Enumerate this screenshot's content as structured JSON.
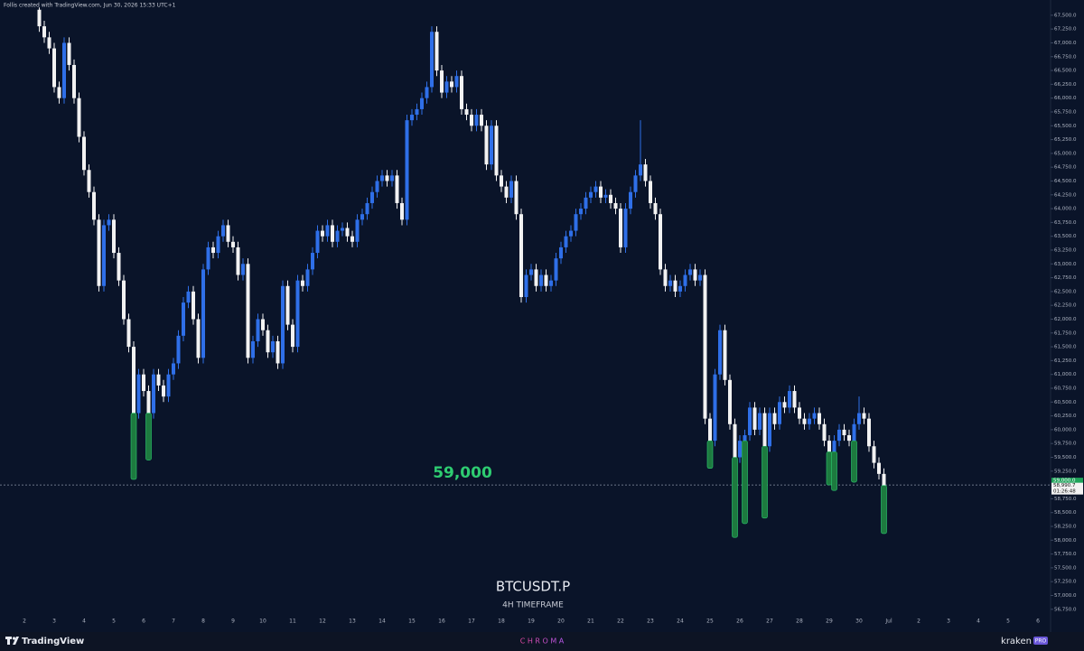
{
  "header": "Follis created with TradingView.com, Jun 30, 2026 15:33 UTC+1",
  "chart_data": {
    "type": "candlestick",
    "symbol": "BTCUSDT.P",
    "timeframe": "4H TIMEFRAME",
    "up_color": "#2f6fe8",
    "down_color": "#f2f2f2",
    "wick_highlight_color": "#1d7a3f",
    "ylim": [
      56665,
      67645
    ],
    "yticks": [
      {
        "value": 56750,
        "label": "56,750.0"
      },
      {
        "value": 57000,
        "label": "57,000.0"
      },
      {
        "value": 57250,
        "label": "57,250.0"
      },
      {
        "value": 57500,
        "label": "57,500.0"
      },
      {
        "value": 57750,
        "label": "57,750.0"
      },
      {
        "value": 58000,
        "label": "58,000.0"
      },
      {
        "value": 58250,
        "label": "58,250.0"
      },
      {
        "value": 58500,
        "label": "58,500.0"
      },
      {
        "value": 58750,
        "label": "58,750.0"
      },
      {
        "value": 59250,
        "label": "59,250.0"
      },
      {
        "value": 59500,
        "label": "59,500.0"
      },
      {
        "value": 59750,
        "label": "59,750.0"
      },
      {
        "value": 60000,
        "label": "60,000.0"
      },
      {
        "value": 60250,
        "label": "60,250.0"
      },
      {
        "value": 60500,
        "label": "60,500.0"
      },
      {
        "value": 60750,
        "label": "60,750.0"
      },
      {
        "value": 61000,
        "label": "61,000.0"
      },
      {
        "value": 61250,
        "label": "61,250.0"
      },
      {
        "value": 61500,
        "label": "61,500.0"
      },
      {
        "value": 61750,
        "label": "61,750.0"
      },
      {
        "value": 62000,
        "label": "62,000.0"
      },
      {
        "value": 62250,
        "label": "62,250.0"
      },
      {
        "value": 62500,
        "label": "62,500.0"
      },
      {
        "value": 62750,
        "label": "62,750.0"
      },
      {
        "value": 63000,
        "label": "63,000.0"
      },
      {
        "value": 63250,
        "label": "63,250.0"
      },
      {
        "value": 63500,
        "label": "63,500.0"
      },
      {
        "value": 63750,
        "label": "63,750.0"
      },
      {
        "value": 64000,
        "label": "64,000.0"
      },
      {
        "value": 64250,
        "label": "64,250.0"
      },
      {
        "value": 64500,
        "label": "64,500.0"
      },
      {
        "value": 64750,
        "label": "64,750.0"
      },
      {
        "value": 65000,
        "label": "65,000.0"
      },
      {
        "value": 65250,
        "label": "65,250.0"
      },
      {
        "value": 65500,
        "label": "65,500.0"
      },
      {
        "value": 65750,
        "label": "65,750.0"
      },
      {
        "value": 66000,
        "label": "66,000.0"
      },
      {
        "value": 66250,
        "label": "66,250.0"
      },
      {
        "value": 66500,
        "label": "66,500.0"
      },
      {
        "value": 66750,
        "label": "66,750.0"
      },
      {
        "value": 67000,
        "label": "67,000.0"
      },
      {
        "value": 67250,
        "label": "67,250.0"
      },
      {
        "value": 67500,
        "label": "67,500.0"
      }
    ],
    "x_labels": [
      "2",
      "3",
      "4",
      "5",
      "6",
      "7",
      "8",
      "9",
      "10",
      "11",
      "12",
      "13",
      "14",
      "15",
      "16",
      "17",
      "18",
      "19",
      "20",
      "21",
      "22",
      "23",
      "24",
      "25",
      "26",
      "27",
      "28",
      "29",
      "30",
      "Jul",
      "2",
      "3",
      "4",
      "5",
      "6"
    ],
    "hline": {
      "value": 59000,
      "label": "59,000",
      "scale_label": "59,000.0"
    },
    "last_price_label": "58,990.7",
    "countdown": "01:26:48",
    "candles": [
      [
        67600,
        67640,
        67200,
        67300
      ],
      [
        67300,
        67400,
        67000,
        67100
      ],
      [
        67100,
        67200,
        66800,
        66900
      ],
      [
        66900,
        67000,
        66100,
        66200
      ],
      [
        66200,
        66300,
        65900,
        66000
      ],
      [
        66000,
        67100,
        65900,
        67000
      ],
      [
        67000,
        67100,
        66500,
        66600
      ],
      [
        66600,
        66700,
        65900,
        66000
      ],
      [
        66000,
        66100,
        65200,
        65300
      ],
      [
        65300,
        65400,
        64600,
        64700
      ],
      [
        64700,
        64800,
        64200,
        64300
      ],
      [
        64300,
        64400,
        63700,
        63800
      ],
      [
        63800,
        63900,
        62500,
        62600
      ],
      [
        62600,
        63800,
        62500,
        63700
      ],
      [
        63700,
        63900,
        63600,
        63800
      ],
      [
        63800,
        63900,
        63100,
        63200
      ],
      [
        63200,
        63300,
        62600,
        62700
      ],
      [
        62700,
        62800,
        61900,
        62000
      ],
      [
        62000,
        62100,
        61400,
        61500
      ],
      [
        61500,
        61600,
        59100,
        60300
      ],
      [
        60300,
        61100,
        60200,
        61000
      ],
      [
        61000,
        61100,
        60600,
        60700
      ],
      [
        60700,
        60800,
        59450,
        60300
      ],
      [
        60300,
        61100,
        60200,
        61000
      ],
      [
        61000,
        61100,
        60700,
        60800
      ],
      [
        60800,
        60900,
        60500,
        60600
      ],
      [
        60600,
        61100,
        60500,
        61000
      ],
      [
        61000,
        61300,
        60900,
        61200
      ],
      [
        61200,
        61800,
        61100,
        61700
      ],
      [
        61700,
        62400,
        61600,
        62300
      ],
      [
        62300,
        62600,
        62200,
        62500
      ],
      [
        62500,
        62600,
        61900,
        62000
      ],
      [
        62000,
        62100,
        61200,
        61300
      ],
      [
        61300,
        63000,
        61200,
        62900
      ],
      [
        62900,
        63400,
        62800,
        63300
      ],
      [
        63300,
        63400,
        63100,
        63200
      ],
      [
        63200,
        63600,
        63100,
        63500
      ],
      [
        63500,
        63800,
        63400,
        63700
      ],
      [
        63700,
        63800,
        63300,
        63400
      ],
      [
        63400,
        63500,
        63200,
        63300
      ],
      [
        63300,
        63400,
        62700,
        62800
      ],
      [
        62800,
        63100,
        62700,
        63000
      ],
      [
        63000,
        63100,
        61200,
        61300
      ],
      [
        61300,
        61700,
        61200,
        61600
      ],
      [
        61600,
        62100,
        61500,
        62000
      ],
      [
        62000,
        62100,
        61700,
        61800
      ],
      [
        61800,
        61900,
        61300,
        61400
      ],
      [
        61400,
        61700,
        61300,
        61600
      ],
      [
        61600,
        61700,
        61100,
        61200
      ],
      [
        61200,
        62700,
        61100,
        62600
      ],
      [
        62600,
        62700,
        61800,
        61900
      ],
      [
        61900,
        62000,
        61400,
        61500
      ],
      [
        61500,
        62800,
        61400,
        62700
      ],
      [
        62700,
        62800,
        62500,
        62600
      ],
      [
        62600,
        63000,
        62500,
        62900
      ],
      [
        62900,
        63300,
        62800,
        63200
      ],
      [
        63200,
        63700,
        63100,
        63600
      ],
      [
        63600,
        63700,
        63400,
        63500
      ],
      [
        63500,
        63800,
        63400,
        63700
      ],
      [
        63700,
        63800,
        63300,
        63400
      ],
      [
        63400,
        63700,
        63300,
        63600
      ],
      [
        63600,
        63750,
        63500,
        63650
      ],
      [
        63650,
        63750,
        63400,
        63500
      ],
      [
        63500,
        63600,
        63300,
        63400
      ],
      [
        63400,
        63900,
        63300,
        63800
      ],
      [
        63800,
        64000,
        63700,
        63900
      ],
      [
        63900,
        64200,
        63800,
        64100
      ],
      [
        64100,
        64400,
        64000,
        64300
      ],
      [
        64300,
        64600,
        64200,
        64500
      ],
      [
        64500,
        64700,
        64400,
        64600
      ],
      [
        64600,
        64700,
        64400,
        64500
      ],
      [
        64500,
        64700,
        64400,
        64600
      ],
      [
        64600,
        64700,
        64000,
        64100
      ],
      [
        64100,
        64200,
        63700,
        63800
      ],
      [
        63800,
        65700,
        63700,
        65600
      ],
      [
        65600,
        65800,
        65500,
        65700
      ],
      [
        65700,
        65900,
        65600,
        65800
      ],
      [
        65800,
        66100,
        65700,
        66000
      ],
      [
        66000,
        66300,
        65900,
        66200
      ],
      [
        66200,
        67300,
        66100,
        67200
      ],
      [
        67200,
        67300,
        66400,
        66500
      ],
      [
        66500,
        66600,
        66000,
        66100
      ],
      [
        66100,
        66400,
        66000,
        66300
      ],
      [
        66300,
        66400,
        66100,
        66200
      ],
      [
        66200,
        66500,
        66100,
        66400
      ],
      [
        66400,
        66500,
        65700,
        65800
      ],
      [
        65800,
        65900,
        65600,
        65700
      ],
      [
        65700,
        65800,
        65400,
        65500
      ],
      [
        65500,
        65800,
        65400,
        65700
      ],
      [
        65700,
        65800,
        65400,
        65500
      ],
      [
        65500,
        65600,
        64700,
        64800
      ],
      [
        64800,
        65600,
        64700,
        65500
      ],
      [
        65500,
        65600,
        64500,
        64600
      ],
      [
        64600,
        64700,
        64300,
        64400
      ],
      [
        64400,
        64500,
        64100,
        64200
      ],
      [
        64200,
        64600,
        64100,
        64500
      ],
      [
        64500,
        64600,
        63800,
        63900
      ],
      [
        63900,
        64000,
        62300,
        62400
      ],
      [
        62400,
        62900,
        62300,
        62800
      ],
      [
        62800,
        63000,
        62700,
        62900
      ],
      [
        62900,
        63000,
        62500,
        62600
      ],
      [
        62600,
        62900,
        62500,
        62800
      ],
      [
        62800,
        62900,
        62500,
        62600
      ],
      [
        62600,
        62800,
        62500,
        62700
      ],
      [
        62700,
        63200,
        62600,
        63100
      ],
      [
        63100,
        63400,
        63000,
        63300
      ],
      [
        63300,
        63600,
        63200,
        63500
      ],
      [
        63500,
        63700,
        63400,
        63600
      ],
      [
        63600,
        64000,
        63500,
        63900
      ],
      [
        63900,
        64100,
        63800,
        64000
      ],
      [
        64000,
        64300,
        63900,
        64200
      ],
      [
        64200,
        64400,
        64100,
        64300
      ],
      [
        64300,
        64500,
        64200,
        64400
      ],
      [
        64400,
        64500,
        64100,
        64200
      ],
      [
        64200,
        64350,
        64100,
        64250
      ],
      [
        64250,
        64350,
        64000,
        64100
      ],
      [
        64100,
        64200,
        63900,
        64000
      ],
      [
        64000,
        64100,
        63200,
        63300
      ],
      [
        63300,
        64100,
        63200,
        64000
      ],
      [
        64000,
        64400,
        63900,
        64300
      ],
      [
        64300,
        64700,
        64200,
        64600
      ],
      [
        64600,
        65600,
        64500,
        64800
      ],
      [
        64800,
        64900,
        64400,
        64500
      ],
      [
        64500,
        64600,
        64000,
        64100
      ],
      [
        64100,
        64200,
        63800,
        63900
      ],
      [
        63900,
        64000,
        62800,
        62900
      ],
      [
        62900,
        63000,
        62500,
        62600
      ],
      [
        62600,
        62800,
        62500,
        62700
      ],
      [
        62700,
        62800,
        62400,
        62500
      ],
      [
        62500,
        62700,
        62400,
        62600
      ],
      [
        62600,
        62900,
        62500,
        62800
      ],
      [
        62800,
        63000,
        62700,
        62900
      ],
      [
        62900,
        63000,
        62600,
        62700
      ],
      [
        62700,
        62900,
        62600,
        62800
      ],
      [
        62800,
        62900,
        60100,
        60200
      ],
      [
        60200,
        60300,
        59300,
        59800
      ],
      [
        59800,
        61100,
        59700,
        61000
      ],
      [
        61000,
        61900,
        60900,
        61800
      ],
      [
        61800,
        61900,
        60800,
        60900
      ],
      [
        60900,
        61000,
        60000,
        60100
      ],
      [
        60100,
        60200,
        58050,
        59500
      ],
      [
        59500,
        59900,
        59400,
        59800
      ],
      [
        59800,
        60000,
        58300,
        59900
      ],
      [
        59900,
        60500,
        59800,
        60400
      ],
      [
        60400,
        60500,
        59900,
        60000
      ],
      [
        60000,
        60400,
        59900,
        60300
      ],
      [
        60300,
        60400,
        58400,
        59700
      ],
      [
        59700,
        60400,
        59600,
        60300
      ],
      [
        60300,
        60400,
        60000,
        60100
      ],
      [
        60100,
        60600,
        60000,
        60500
      ],
      [
        60500,
        60600,
        60300,
        60400
      ],
      [
        60400,
        60800,
        60300,
        60700
      ],
      [
        60700,
        60800,
        60300,
        60400
      ],
      [
        60400,
        60500,
        60100,
        60200
      ],
      [
        60200,
        60300,
        60000,
        60100
      ],
      [
        60100,
        60300,
        60000,
        60200
      ],
      [
        60200,
        60400,
        60100,
        60300
      ],
      [
        60300,
        60400,
        60000,
        60100
      ],
      [
        60100,
        60200,
        59700,
        59800
      ],
      [
        59800,
        59900,
        59000,
        59600
      ],
      [
        59600,
        59900,
        58900,
        59800
      ],
      [
        59800,
        60100,
        59700,
        60000
      ],
      [
        60000,
        60100,
        59800,
        59900
      ],
      [
        59900,
        60000,
        59700,
        59800
      ],
      [
        59800,
        60200,
        59050,
        60100
      ],
      [
        60100,
        60600,
        60000,
        60300
      ],
      [
        60300,
        60400,
        60100,
        60200
      ],
      [
        60200,
        60300,
        59600,
        59700
      ],
      [
        59700,
        59800,
        59300,
        59400
      ],
      [
        59400,
        59500,
        59100,
        59200
      ],
      [
        59200,
        59300,
        58120,
        58990.7
      ]
    ]
  },
  "footer": {
    "brand": "TradingView",
    "center": "C H R O M A",
    "partner": "kraken",
    "partner_tag": "PRO"
  }
}
